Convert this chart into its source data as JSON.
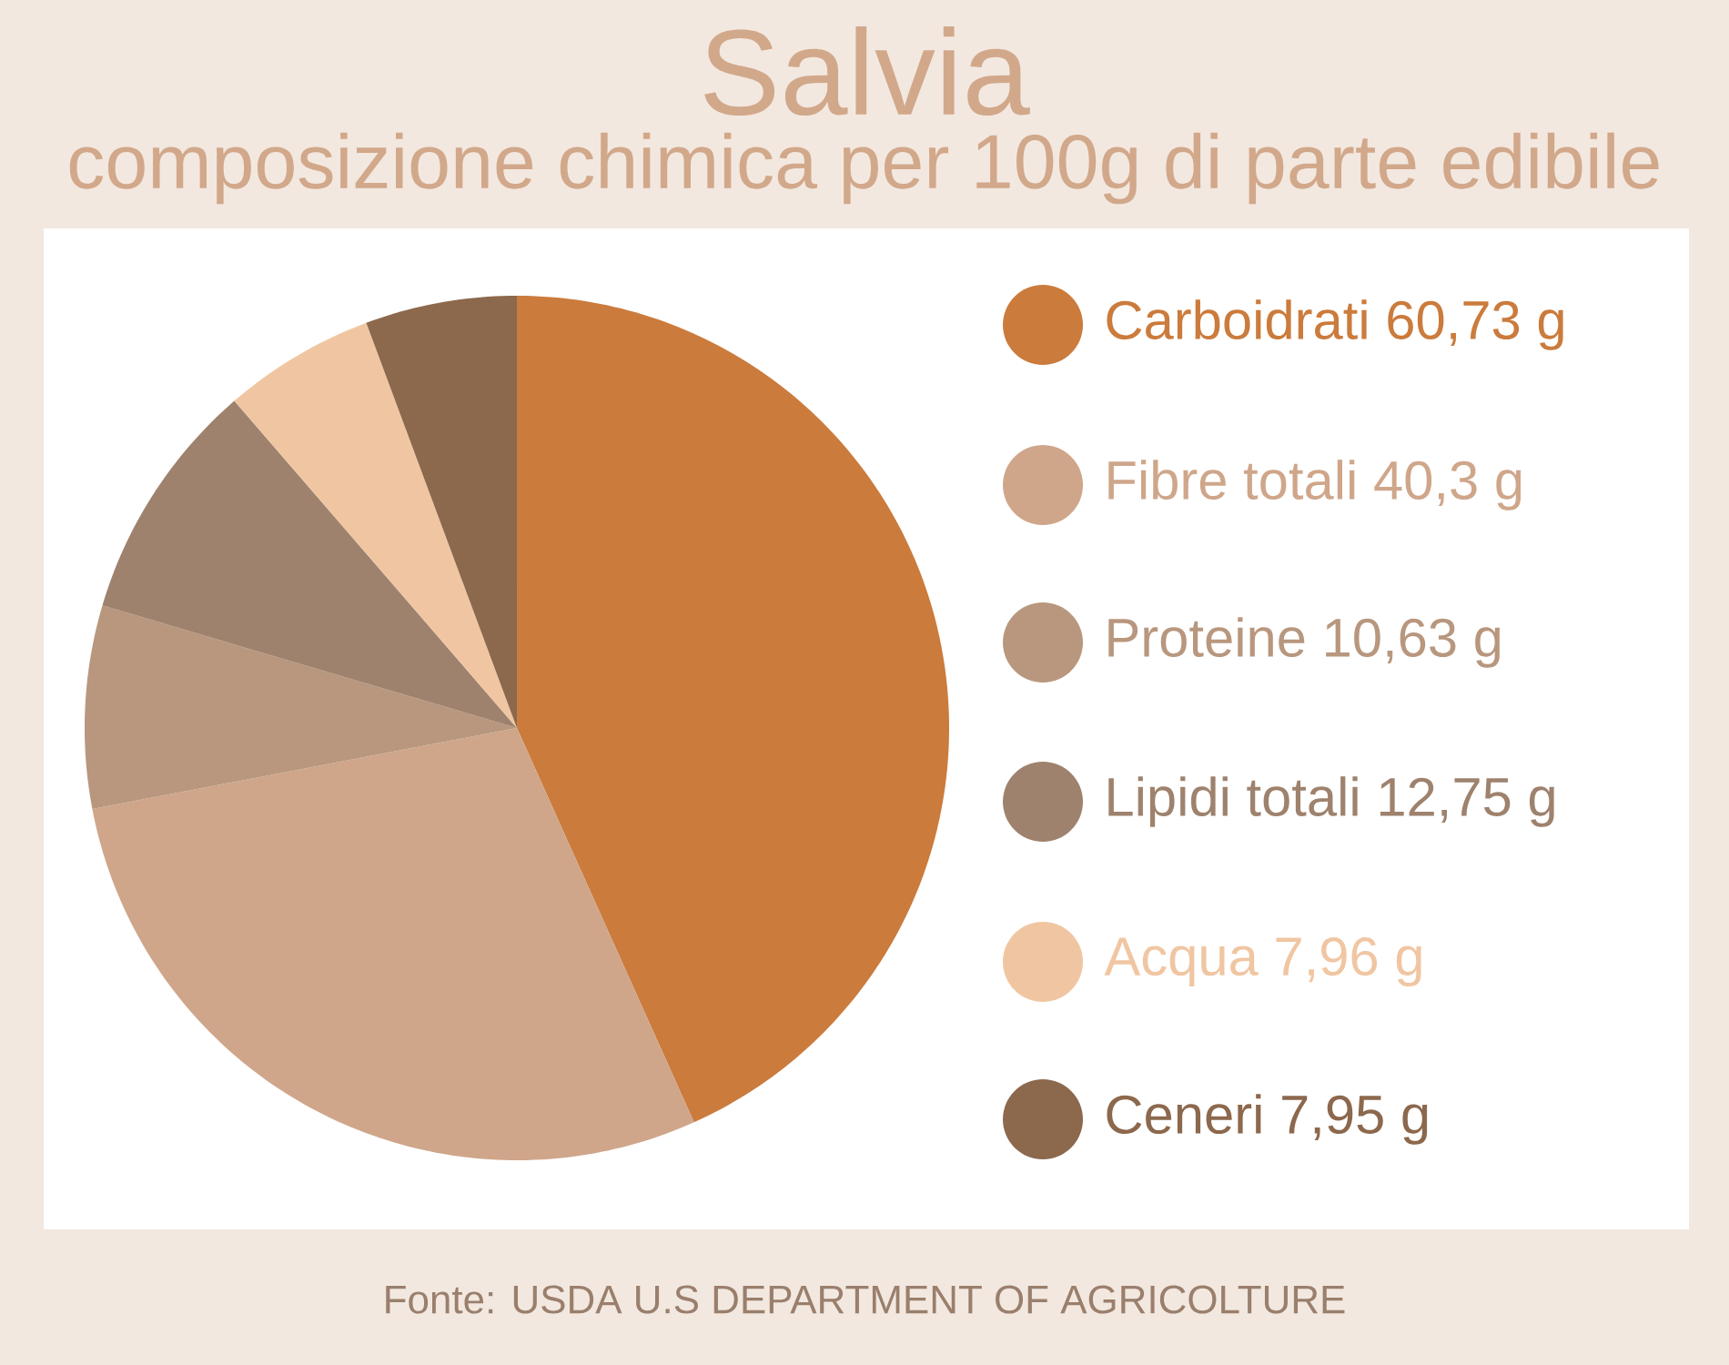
{
  "chart_data": {
    "type": "pie",
    "title": "Salvia",
    "subtitle": "composizione chimica per 100g di parte edibile",
    "categories": [
      "Carboidrati",
      "Fibre totali",
      "Proteine",
      "Lipidi totali",
      "Acqua",
      "Ceneri"
    ],
    "values": [
      60.73,
      40.3,
      10.63,
      12.75,
      7.96,
      7.95
    ],
    "value_labels": [
      "60,73 g",
      "40,3 g",
      "10,63 g",
      "12,75 g",
      "7,96 g",
      "7,95 g"
    ],
    "colors": [
      "#cb7b3c",
      "#cfa68a",
      "#b8977e",
      "#9e826d",
      "#f0c6a2",
      "#8c684d"
    ],
    "legend": "right",
    "annotations": [
      "Fonte: USDA U.S DEPARTMENT OF AGRICOLTURE"
    ]
  }
}
